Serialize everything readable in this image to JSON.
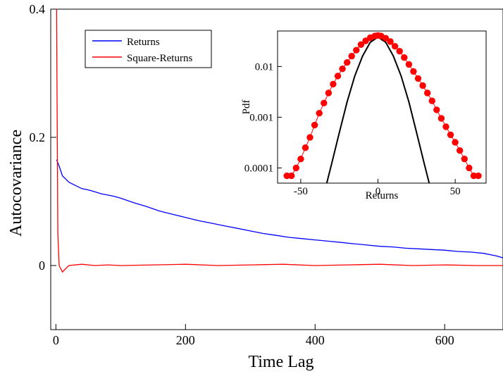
{
  "chart_data": [
    {
      "type": "line",
      "xlabel": "Time Lag",
      "ylabel": "Autocovariance",
      "xlim": [
        -8,
        690
      ],
      "ylim": [
        -0.1,
        0.4
      ],
      "xticks": [
        0,
        200,
        400,
        600
      ],
      "xtick_labels": [
        "0",
        "200",
        "400",
        "600"
      ],
      "yticks": [
        0,
        0.2,
        0.4
      ],
      "ytick_labels": [
        "0",
        "0.2",
        "0.4"
      ],
      "legend_position": "top-left",
      "series": [
        {
          "name": "Returns",
          "color": "#0000ff",
          "x": [
            1,
            5,
            10,
            20,
            30,
            40,
            50,
            60,
            70,
            80,
            90,
            100,
            120,
            140,
            160,
            180,
            200,
            220,
            240,
            260,
            280,
            300,
            320,
            340,
            360,
            380,
            400,
            420,
            440,
            460,
            480,
            500,
            520,
            540,
            560,
            580,
            600,
            620,
            640,
            660,
            680,
            690
          ],
          "y": [
            0.165,
            0.155,
            0.14,
            0.13,
            0.125,
            0.12,
            0.118,
            0.115,
            0.112,
            0.11,
            0.108,
            0.105,
            0.098,
            0.092,
            0.085,
            0.08,
            0.075,
            0.07,
            0.066,
            0.062,
            0.058,
            0.054,
            0.05,
            0.047,
            0.044,
            0.042,
            0.04,
            0.038,
            0.036,
            0.034,
            0.032,
            0.03,
            0.029,
            0.027,
            0.026,
            0.025,
            0.024,
            0.022,
            0.021,
            0.019,
            0.015,
            0.012
          ]
        },
        {
          "name": "Square-Returns",
          "color": "#ff0000",
          "x": [
            1,
            3,
            5,
            10,
            20,
            40,
            60,
            80,
            100,
            150,
            200,
            250,
            300,
            350,
            400,
            450,
            500,
            550,
            600,
            650,
            690
          ],
          "y": [
            0.4,
            0.05,
            0.0,
            -0.01,
            0.0,
            0.002,
            0.0,
            0.001,
            0.0,
            0.001,
            0.002,
            0.0,
            0.001,
            0.002,
            0.0,
            0.001,
            0.002,
            0.0,
            0.001,
            0.0,
            0.0
          ]
        }
      ]
    },
    {
      "type": "scatter",
      "inset": true,
      "xlabel": "Returns",
      "ylabel": "Pdf",
      "xlim": [
        -65,
        70
      ],
      "ylim_log10": [
        -4.3,
        -1.3
      ],
      "log_y": true,
      "xticks": [
        -50,
        0,
        50
      ],
      "xtick_labels": [
        "-50",
        "0",
        "50"
      ],
      "yticks": [
        0.0001,
        0.001,
        0.01
      ],
      "ytick_labels": [
        "0.0001",
        "0.001",
        "0.01"
      ],
      "series": [
        {
          "name": "",
          "color": "#ff0000",
          "marker": "circle",
          "x": [
            -59,
            -56,
            -53,
            -50,
            -47,
            -44,
            -41,
            -38,
            -35,
            -32,
            -29,
            -26,
            -23,
            -20,
            -17,
            -14,
            -11,
            -8,
            -5,
            -2,
            0,
            2,
            5,
            8,
            11,
            14,
            17,
            20,
            23,
            26,
            29,
            32,
            35,
            38,
            41,
            44,
            47,
            50,
            53,
            56,
            59,
            62,
            65
          ],
          "y": [
            7e-05,
            7e-05,
            0.0001,
            0.00015,
            0.00025,
            0.0004,
            0.0007,
            0.0012,
            0.0019,
            0.003,
            0.0045,
            0.0065,
            0.009,
            0.012,
            0.016,
            0.021,
            0.027,
            0.032,
            0.037,
            0.04,
            0.041,
            0.04,
            0.036,
            0.031,
            0.025,
            0.02,
            0.015,
            0.011,
            0.008,
            0.0058,
            0.0042,
            0.003,
            0.0021,
            0.0014,
            0.00095,
            0.00065,
            0.00045,
            0.00032,
            0.00022,
            0.00015,
            0.0001,
            7e-05,
            7e-05
          ]
        },
        {
          "name": "",
          "color": "#000000",
          "x": [
            -35,
            -30,
            -25,
            -20,
            -15,
            -10,
            -5,
            0,
            5,
            10,
            15,
            20,
            25,
            30,
            35
          ],
          "y": [
            3e-05,
            0.00012,
            0.0005,
            0.002,
            0.0065,
            0.016,
            0.03,
            0.038,
            0.03,
            0.016,
            0.0065,
            0.002,
            0.0005,
            0.00012,
            3e-05
          ]
        }
      ]
    }
  ]
}
